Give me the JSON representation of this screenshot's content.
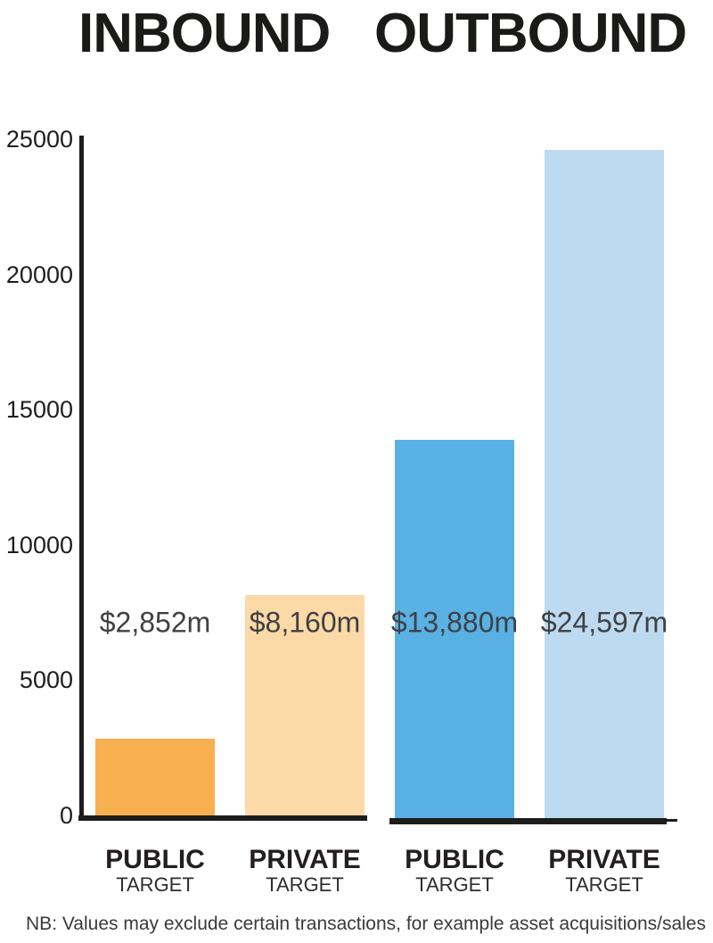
{
  "header": {
    "title_left": "INBOUND",
    "title_right": "OUTBOUND"
  },
  "footnote": "NB: Values may exclude certain transactions, for example asset acquisitions/sales",
  "colors": {
    "axis": "#1d1d1b",
    "tick_text": "#1e1e1e",
    "value_text": "#404044",
    "category_text": "#231f20"
  },
  "chart_data": {
    "type": "bar",
    "title": "INBOUND OUTBOUND",
    "xlabel": "",
    "ylabel": "",
    "ylim": [
      0,
      25000
    ],
    "y_ticks": [
      0,
      5000,
      10000,
      15000,
      20000,
      25000
    ],
    "grid": false,
    "legend": false,
    "groups": [
      "INBOUND",
      "OUTBOUND"
    ],
    "categories": [
      "PUBLIC TARGET",
      "PRIVATE TARGET",
      "PUBLIC TARGET",
      "PRIVATE TARGET"
    ],
    "values": [
      2852,
      8160,
      13880,
      24597
    ],
    "value_labels": [
      "$2,852m",
      "$8,160m",
      "$13,880m",
      "$24,597m"
    ],
    "bars": [
      {
        "group": "INBOUND",
        "category": "PUBLIC",
        "category_sub": "TARGET",
        "value": 2852,
        "value_label": "$2,852m",
        "color": "#F8AF50"
      },
      {
        "group": "INBOUND",
        "category": "PRIVATE",
        "category_sub": "TARGET",
        "value": 8160,
        "value_label": "$8,160m",
        "color": "#FCDAA7"
      },
      {
        "group": "OUTBOUND",
        "category": "PUBLIC",
        "category_sub": "TARGET",
        "value": 13880,
        "value_label": "$13,880m",
        "color": "#59B1E3"
      },
      {
        "group": "OUTBOUND",
        "category": "PRIVATE",
        "category_sub": "TARGET",
        "value": 24597,
        "value_label": "$24,597m",
        "color": "#BDDAF0"
      }
    ],
    "note": "NB: Values may exclude certain transactions, for example asset acquisitions/sales"
  }
}
